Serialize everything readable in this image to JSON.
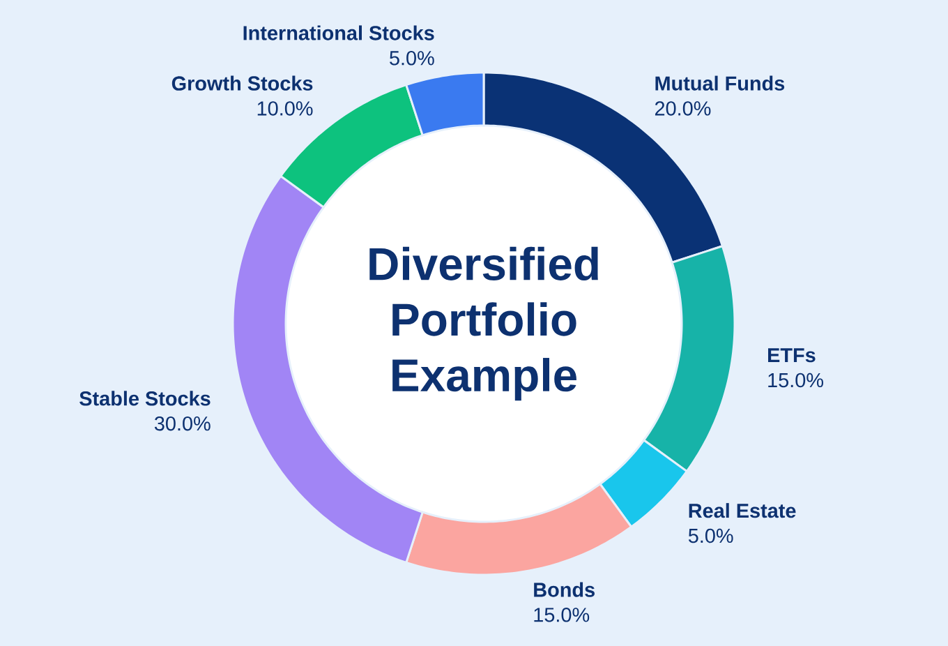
{
  "chart_data": {
    "type": "donut",
    "title": "Diversified Portfolio Example",
    "categories": [
      "Mutual Funds",
      "ETFs",
      "Real Estate",
      "Bonds",
      "Stable Stocks",
      "Growth Stocks",
      "International Stocks"
    ],
    "values": [
      20,
      15,
      5,
      15,
      30,
      10,
      5
    ],
    "value_labels": [
      "20.0%",
      "15.0%",
      "5.0%",
      "15.0%",
      "30.0%",
      "10.0%",
      "5.0%"
    ],
    "colors": [
      "#0a3275",
      "#17b3a8",
      "#19c6ec",
      "#fba5a0",
      "#a185f5",
      "#0dc27e",
      "#3a7af0"
    ]
  }
}
